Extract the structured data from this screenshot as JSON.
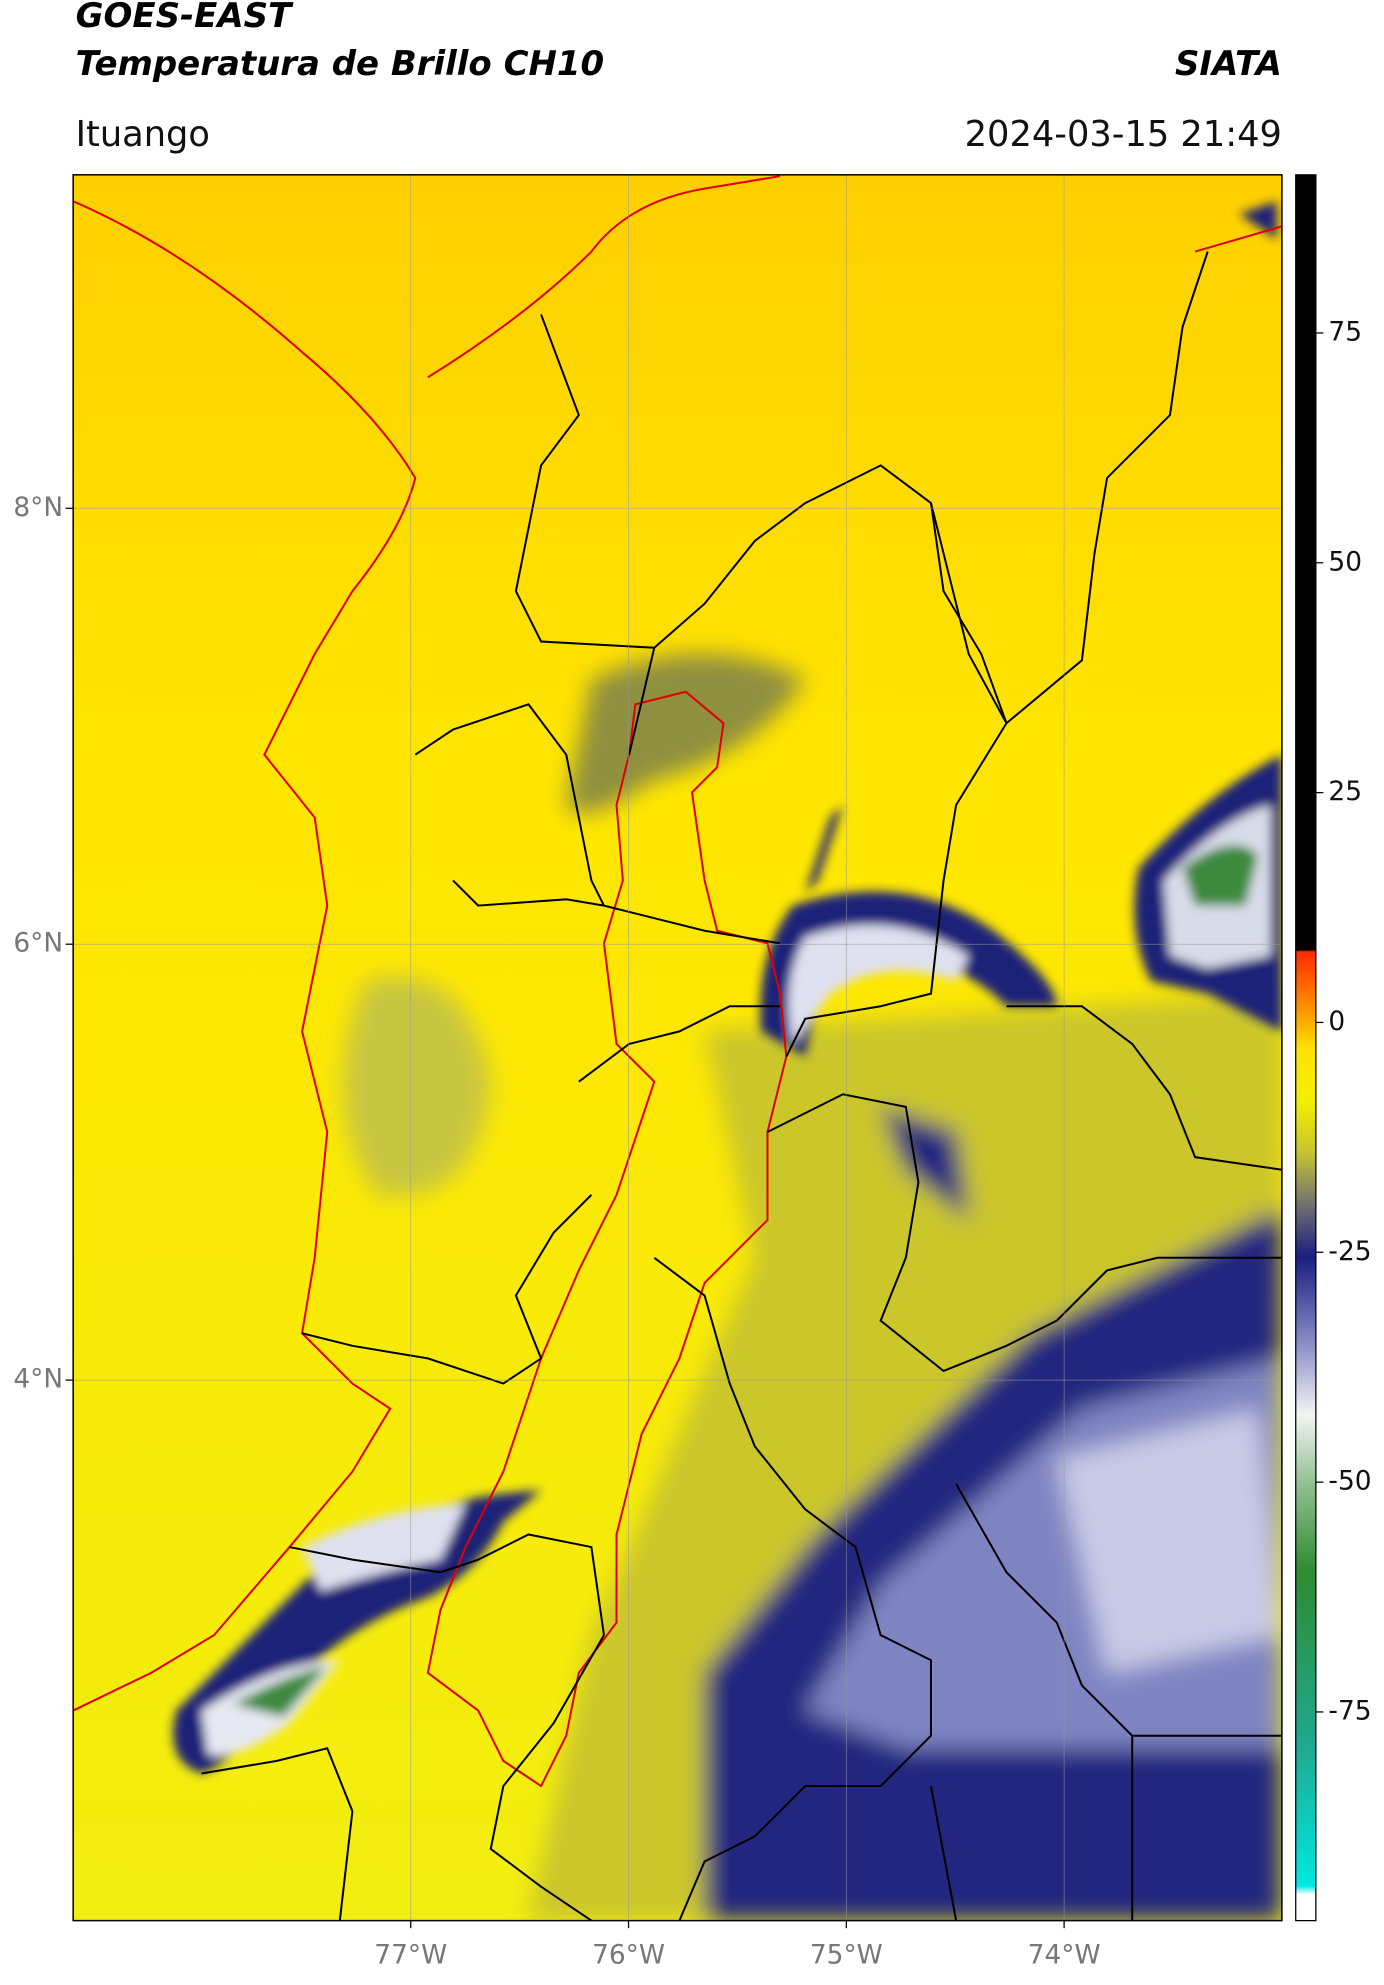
{
  "header": {
    "title": "GOES-EAST",
    "subtitle": "Temperatura de Brillo CH10",
    "org": "SIATA",
    "location": "Ituango",
    "datetime": "2024-03-15 21:49"
  },
  "map": {
    "xlim": [
      -78.55,
      -73.0
    ],
    "ylim": [
      1.52,
      9.53
    ],
    "xticks": [
      {
        "value": -77,
        "label": "77°W"
      },
      {
        "value": -76,
        "label": "76°W"
      },
      {
        "value": -75,
        "label": "75°W"
      },
      {
        "value": -74,
        "label": "74°W"
      }
    ],
    "yticks": [
      {
        "value": 8,
        "label": "8°N"
      },
      {
        "value": 6,
        "label": "6°N"
      },
      {
        "value": 4,
        "label": "4°N"
      }
    ],
    "grid": true
  },
  "colorbar": {
    "lim": [
      -97.7,
      92.2
    ],
    "ticks": [
      75,
      50,
      25,
      0,
      -25,
      -50,
      -75
    ]
  }
}
